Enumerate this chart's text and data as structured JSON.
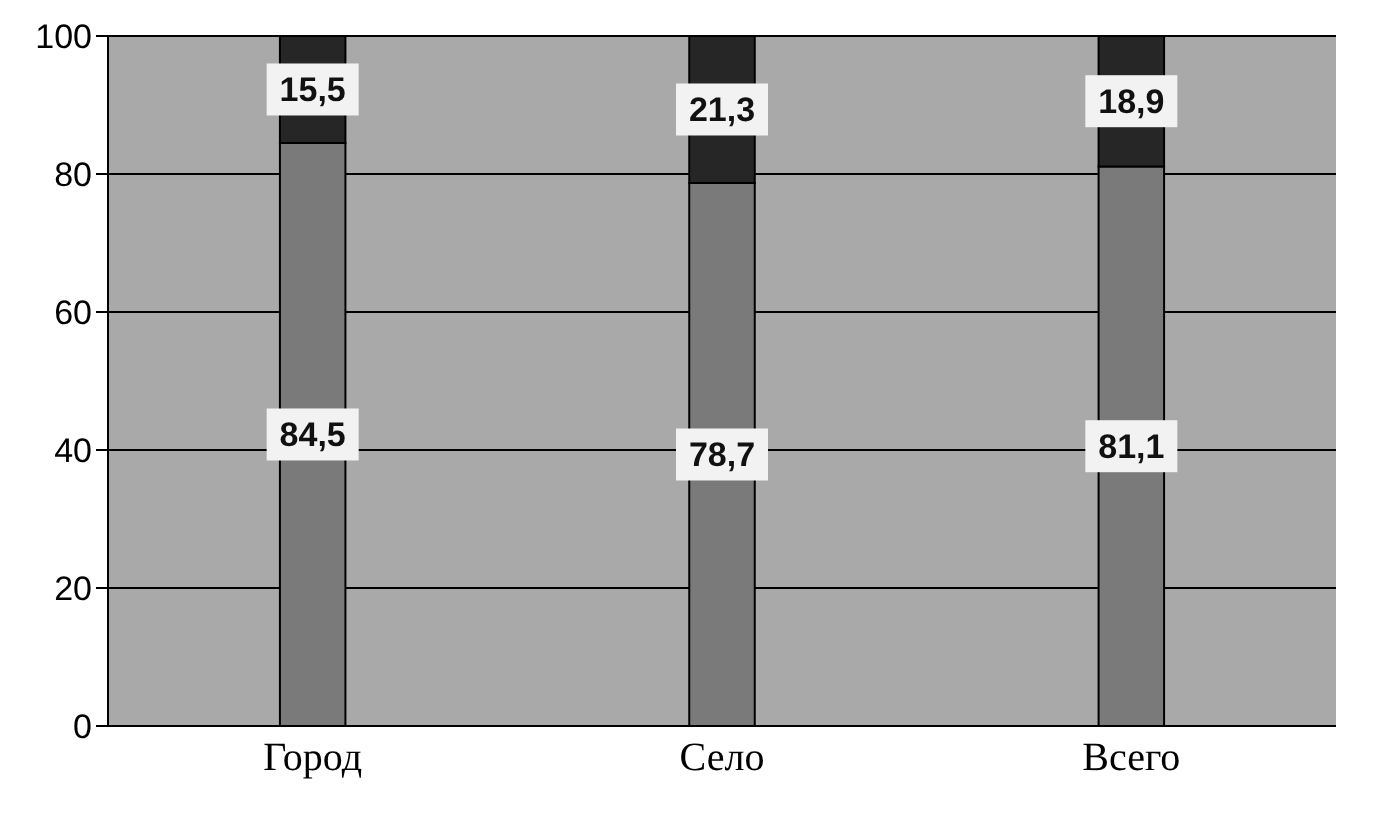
{
  "chart_data": {
    "type": "bar",
    "categories": [
      "Город",
      "Село",
      "Всего"
    ],
    "series": [
      {
        "color": "#7a7a7a",
        "values": [
          84.5,
          78.7,
          81.1
        ],
        "value_labels": [
          "84,5",
          "78,7",
          "81,1"
        ]
      },
      {
        "color": "#262626",
        "values": [
          15.5,
          21.3,
          18.9
        ],
        "value_labels": [
          "15,5",
          "21,3",
          "18,9"
        ]
      }
    ],
    "stacked": true,
    "ylim": [
      0,
      100
    ],
    "yticks": [
      0,
      20,
      40,
      60,
      80,
      100
    ],
    "grid": "y",
    "legend": false
  }
}
